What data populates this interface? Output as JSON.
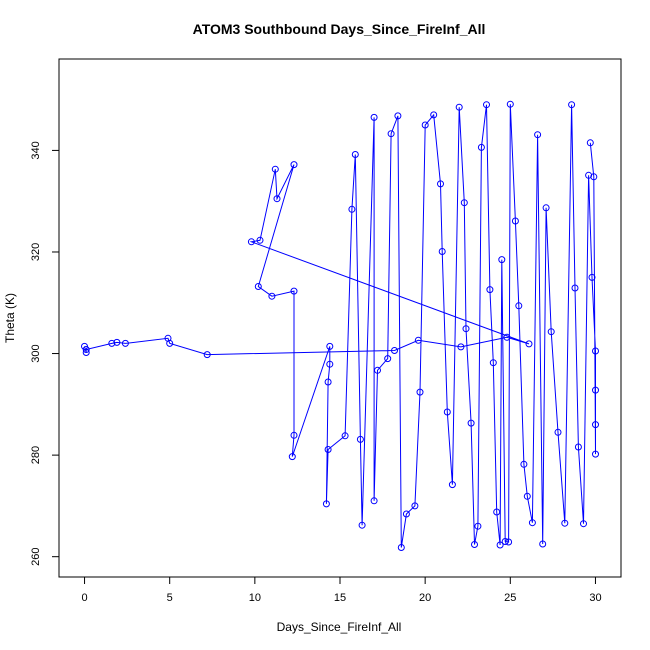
{
  "chart_data": {
    "type": "scatter",
    "title": "ATOM3 Southbound Days_Since_FireInf_All",
    "xlabel": "Days_Since_FireInf_All",
    "ylabel": "Theta (K)",
    "xlim": [
      -1.5,
      31.5
    ],
    "ylim": [
      256,
      358
    ],
    "xticks": [
      0,
      5,
      10,
      15,
      20,
      25,
      30
    ],
    "yticks": [
      260,
      280,
      300,
      320,
      340
    ],
    "grid": false,
    "legend": "none",
    "point_style": "open-circle",
    "lines_connect_points": true,
    "color": "#0000ff",
    "series": [
      {
        "values": [
          [
            0.0,
            301.4
          ],
          [
            0.1,
            300.2
          ],
          [
            0.1,
            300.8
          ],
          [
            1.6,
            302.0
          ],
          [
            1.9,
            302.2
          ],
          [
            2.4,
            302.0
          ],
          [
            4.9,
            303.0
          ],
          [
            5.0,
            302.0
          ],
          [
            7.2,
            299.8
          ],
          [
            18.2,
            300.6
          ],
          [
            19.6,
            302.6
          ],
          [
            22.1,
            301.3
          ],
          [
            24.8,
            303.2
          ],
          [
            26.1,
            301.9
          ],
          [
            9.8,
            322.0
          ],
          [
            10.3,
            322.3
          ],
          [
            11.2,
            336.3
          ],
          [
            11.3,
            330.5
          ],
          [
            12.3,
            337.2
          ],
          [
            10.2,
            313.2
          ],
          [
            11.0,
            311.3
          ],
          [
            12.3,
            312.3
          ],
          [
            12.3,
            283.9
          ],
          [
            12.2,
            279.7
          ],
          [
            14.4,
            301.4
          ],
          [
            14.4,
            297.9
          ],
          [
            14.3,
            294.4
          ],
          [
            14.2,
            270.4
          ],
          [
            14.3,
            281.1
          ],
          [
            15.3,
            283.8
          ],
          [
            15.7,
            328.4
          ],
          [
            15.9,
            339.2
          ],
          [
            16.2,
            283.1
          ],
          [
            16.3,
            266.2
          ],
          [
            17.0,
            346.5
          ],
          [
            17.0,
            271.0
          ],
          [
            17.2,
            296.7
          ],
          [
            17.8,
            299.0
          ],
          [
            18.0,
            343.3
          ],
          [
            18.4,
            346.8
          ],
          [
            18.6,
            261.8
          ],
          [
            18.9,
            268.4
          ],
          [
            19.4,
            270.0
          ],
          [
            19.7,
            292.4
          ],
          [
            20.0,
            345.0
          ],
          [
            20.5,
            347.0
          ],
          [
            20.9,
            333.4
          ],
          [
            21.0,
            320.1
          ],
          [
            21.3,
            288.5
          ],
          [
            21.6,
            274.2
          ],
          [
            22.0,
            348.5
          ],
          [
            22.3,
            329.7
          ],
          [
            22.4,
            304.9
          ],
          [
            22.7,
            286.3
          ],
          [
            22.9,
            262.4
          ],
          [
            23.1,
            266.0
          ],
          [
            23.3,
            340.6
          ],
          [
            23.6,
            349.0
          ],
          [
            23.8,
            312.6
          ],
          [
            24.0,
            298.2
          ],
          [
            24.2,
            268.8
          ],
          [
            24.4,
            262.3
          ],
          [
            24.5,
            318.5
          ],
          [
            24.7,
            263.0
          ],
          [
            24.9,
            262.9
          ],
          [
            25.0,
            349.1
          ],
          [
            25.3,
            326.1
          ],
          [
            25.5,
            309.4
          ],
          [
            25.8,
            278.2
          ],
          [
            26.0,
            271.9
          ],
          [
            26.3,
            266.7
          ],
          [
            26.6,
            343.1
          ],
          [
            26.9,
            262.5
          ],
          [
            27.1,
            328.7
          ],
          [
            27.4,
            304.3
          ],
          [
            27.8,
            284.5
          ],
          [
            28.2,
            266.6
          ],
          [
            28.6,
            349.0
          ],
          [
            28.8,
            312.9
          ],
          [
            29.0,
            281.6
          ],
          [
            29.3,
            266.5
          ],
          [
            29.6,
            335.1
          ],
          [
            29.8,
            315.0
          ],
          [
            30.0,
            300.5
          ],
          [
            30.0,
            292.8
          ],
          [
            30.0,
            286.0
          ],
          [
            30.0,
            280.2
          ],
          [
            29.9,
            334.8
          ],
          [
            29.7,
            341.5
          ]
        ]
      }
    ]
  }
}
